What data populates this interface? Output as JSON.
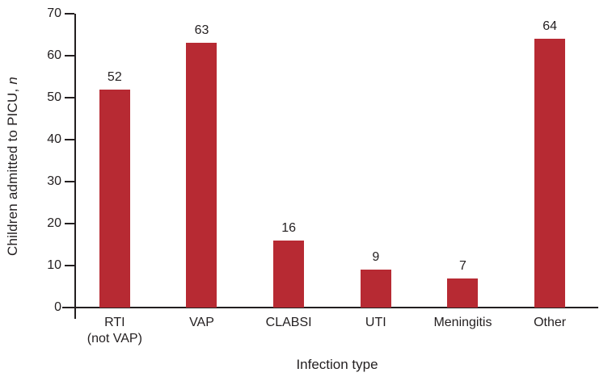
{
  "chart_data": {
    "type": "bar",
    "title": "",
    "categories": [
      [
        "RTI",
        "(not VAP)"
      ],
      [
        "VAP"
      ],
      [
        "CLABSI"
      ],
      [
        "UTI"
      ],
      [
        "Meningitis"
      ],
      [
        "Other"
      ]
    ],
    "values": [
      52,
      63,
      16,
      9,
      7,
      64
    ],
    "value_labels": [
      "52",
      "63",
      "16",
      "9",
      "7",
      "64"
    ],
    "xlabel": "Infection type",
    "ylabel": "Children admitted to PICU, n",
    "ylabel_main": "Children admitted to PICU, ",
    "ylabel_italic": "n",
    "ylim": [
      0,
      70
    ],
    "yticks": [
      0,
      10,
      20,
      30,
      40,
      50,
      60,
      70
    ],
    "grid": false,
    "legend": null,
    "bar_color": "#B72A33",
    "axis_color": "#231F20",
    "text_color": "#231F20",
    "background_color": "#FFFFFF"
  }
}
